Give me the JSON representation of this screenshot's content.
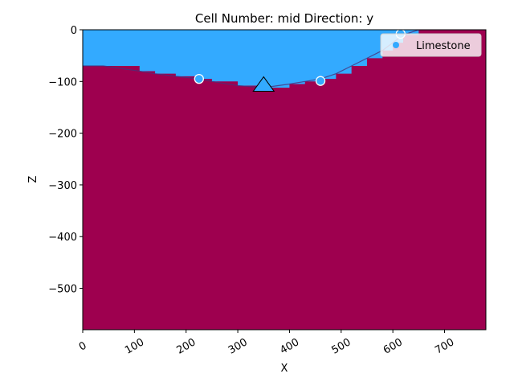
{
  "chart_data": {
    "type": "area",
    "title": "Cell Number: mid Direction: y",
    "xlabel": "X",
    "ylabel": "Z",
    "xlim": [
      0,
      780
    ],
    "ylim": [
      -580,
      0
    ],
    "x_ticks": [
      0,
      100,
      200,
      300,
      400,
      500,
      600,
      700
    ],
    "y_ticks": [
      0,
      -100,
      -200,
      -300,
      -400,
      -500
    ],
    "x_tick_labels": [
      "0",
      "100",
      "200",
      "300",
      "400",
      "500",
      "600",
      "700"
    ],
    "y_tick_labels": [
      "0",
      "−100",
      "−200",
      "−300",
      "−400",
      "−500"
    ],
    "colors": {
      "limestone": "#33aaff",
      "basement": "#9e004f"
    },
    "surface": {
      "x": [
        0,
        40,
        110,
        140,
        180,
        225,
        250,
        300,
        350,
        400,
        430,
        460,
        490,
        520,
        550,
        580,
        600,
        620,
        650,
        700,
        780
      ],
      "z": [
        -70,
        -70,
        -80,
        -85,
        -90,
        -95,
        -100,
        -108,
        -112,
        -105,
        -100,
        -95,
        -85,
        -70,
        -55,
        -40,
        -25,
        -10,
        0,
        0,
        0
      ]
    },
    "points": [
      {
        "x": 225,
        "z": -95
      },
      {
        "x": 460,
        "z": -99
      },
      {
        "x": 615,
        "z": -8
      }
    ],
    "orientation": {
      "x": 350,
      "z": -105
    },
    "legend": {
      "entries": [
        "Limestone"
      ],
      "position": "upper right"
    }
  }
}
